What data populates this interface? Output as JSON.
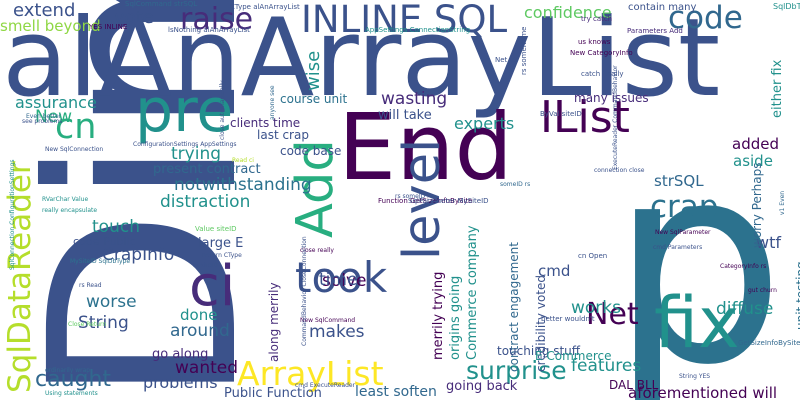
{
  "words": [
    {
      "text": "Dim",
      "color": "#3b528b"
    },
    {
      "text": "alAnArrayList",
      "color": "#3b528b"
    },
    {
      "text": "p",
      "color": "#2c728e"
    },
    {
      "text": "End",
      "color": "#440154"
    },
    {
      "text": "fix",
      "color": "#21918c"
    },
    {
      "text": "pre",
      "color": "#21918c"
    },
    {
      "text": "ci",
      "color": "#472c7a"
    },
    {
      "text": "SqlDataReader",
      "color": "#b5de2b"
    },
    {
      "text": "Add",
      "color": "#28ae80"
    },
    {
      "text": "level",
      "color": "#3b528b"
    },
    {
      "text": "IList",
      "color": "#440154"
    },
    {
      "text": "took",
      "color": "#3b528b"
    },
    {
      "text": "INLINE SQL",
      "color": "#3b528b"
    },
    {
      "text": "ArrayList",
      "color": "#fde725"
    },
    {
      "text": "code",
      "color": "#31688e"
    },
    {
      "text": "cn",
      "color": "#28ae80"
    },
    {
      "text": "crap",
      "color": "#2c728e"
    },
    {
      "text": "Net",
      "color": "#440154"
    },
    {
      "text": "raise",
      "color": "#472c7a"
    },
    {
      "text": "surprise",
      "color": "#21918c"
    },
    {
      "text": "caught",
      "color": "#31688e"
    },
    {
      "text": "CrapInfo",
      "color": "#3b528b"
    },
    {
      "text": "vote",
      "color": "#3b528b"
    },
    {
      "text": "extend",
      "color": "#3b528b"
    },
    {
      "text": "confidence",
      "color": "#5ec962"
    },
    {
      "text": "smell beyond",
      "color": "#8fd744"
    },
    {
      "text": "wise",
      "color": "#21918c"
    },
    {
      "text": "assurance",
      "color": "#21918c"
    },
    {
      "text": "wasting",
      "color": "#472c7a"
    },
    {
      "text": "experts",
      "color": "#21918c"
    },
    {
      "text": "New",
      "color": "#28ae80"
    },
    {
      "text": "added",
      "color": "#440154"
    },
    {
      "text": "aside",
      "color": "#21918c"
    },
    {
      "text": "strSQL",
      "color": "#31688e"
    },
    {
      "text": "trying",
      "color": "#21918c"
    },
    {
      "text": "distraction",
      "color": "#21918c"
    },
    {
      "text": "notwithstanding",
      "color": "#2c728e"
    },
    {
      "text": "cmd",
      "color": "#3b528b"
    },
    {
      "text": "wtf",
      "color": "#3b528b"
    },
    {
      "text": "touch",
      "color": "#21918c"
    },
    {
      "text": "solve",
      "color": "#440154"
    },
    {
      "text": "time",
      "color": "#3b528b"
    },
    {
      "text": "works",
      "color": "#21918c"
    },
    {
      "text": "diffuse",
      "color": "#21918c"
    },
    {
      "text": "worse",
      "color": "#2c728e"
    },
    {
      "text": "String",
      "color": "#3b528b"
    },
    {
      "text": "done",
      "color": "#21918c"
    },
    {
      "text": "around",
      "color": "#31688e"
    },
    {
      "text": "makes",
      "color": "#3b528b"
    },
    {
      "text": "wanted",
      "color": "#440154"
    },
    {
      "text": "problems",
      "color": "#3b528b"
    },
    {
      "text": "features",
      "color": "#21918c"
    },
    {
      "text": "going back",
      "color": "#472c7a"
    },
    {
      "text": "least soften",
      "color": "#31688e"
    },
    {
      "text": "Public Function",
      "color": "#3b528b"
    },
    {
      "text": "aforementioned will",
      "color": "#440154"
    },
    {
      "text": "many issues",
      "color": "#472c7a"
    },
    {
      "text": "will take",
      "color": "#3b528b"
    },
    {
      "text": "course unit",
      "color": "#2c728e"
    },
    {
      "text": "clients time",
      "color": "#472c7a"
    },
    {
      "text": "last crap",
      "color": "#3b528b"
    },
    {
      "text": "code base",
      "color": "#3b528b"
    },
    {
      "text": "present contract",
      "color": "#31688e"
    },
    {
      "text": "large E",
      "color": "#3b528b"
    },
    {
      "text": "code Public",
      "color": "#3b528b"
    },
    {
      "text": "go along",
      "color": "#472c7a"
    },
    {
      "text": "Commerce company",
      "color": "#21918c"
    },
    {
      "text": "origins going",
      "color": "#21918c"
    },
    {
      "text": "merrily trying",
      "color": "#440154"
    },
    {
      "text": "contract engagement",
      "color": "#31688e"
    },
    {
      "text": "credibility voted",
      "color": "#3b528b"
    },
    {
      "text": "touching stuff",
      "color": "#3b528b"
    },
    {
      "text": "E Commerce",
      "color": "#21918c"
    },
    {
      "text": "DAL BLL",
      "color": "#440154"
    },
    {
      "text": "along merrily",
      "color": "#472c7a"
    },
    {
      "text": "either fix",
      "color": "#21918c"
    },
    {
      "text": "unit testing",
      "color": "#2c728e"
    },
    {
      "text": "worry Perhaps",
      "color": "#31688e"
    },
    {
      "text": "contain many",
      "color": "#3b528b"
    },
    {
      "text": "SqlCommand strSQL",
      "color": "#31688e"
    },
    {
      "text": "CType alAnArrayList",
      "color": "#3b528b"
    },
    {
      "text": "YES INLINE",
      "color": "#440154"
    },
    {
      "text": "lsNothing alAnArrayList",
      "color": "#3b528b"
    },
    {
      "text": "AppSettings ConnectionString",
      "color": "#21918c"
    },
    {
      "text": "Parameters Add",
      "color": "#472c7a"
    },
    {
      "text": "New CategoryInfo",
      "color": "#440154"
    },
    {
      "text": "try catch",
      "color": "#472c7a"
    },
    {
      "text": "us knows",
      "color": "#440154"
    },
    {
      "text": "catch finally",
      "color": "#3b528b"
    },
    {
      "text": "Net v1",
      "color": "#3b528b"
    },
    {
      "text": "Even better",
      "color": "#31688e"
    },
    {
      "text": "see problems",
      "color": "#3b528b"
    },
    {
      "text": "New SqlConnection",
      "color": "#3b528b"
    },
    {
      "text": "ConfigurationSettings AppSettings",
      "color": "#3b528b"
    },
    {
      "text": "SqlConnection ConfigurationSettings",
      "color": "#21918c"
    },
    {
      "text": "RVarChar Value",
      "color": "#21918c"
    },
    {
      "text": "really encapsulate",
      "color": "#21918c"
    },
    {
      "text": "Function GetSizeInfoBySite",
      "color": "#440154"
    },
    {
      "text": "SqlParameter MySiteID",
      "color": "#3b528b"
    },
    {
      "text": "close really",
      "color": "#440154"
    },
    {
      "text": "New SqlCommand",
      "color": "#440154"
    },
    {
      "text": "Value siteID",
      "color": "#5ec962"
    },
    {
      "text": "Return CType",
      "color": "#3b528b"
    },
    {
      "text": "rs siteID",
      "color": "#3b528b"
    },
    {
      "text": "MySiteID SqlDbType",
      "color": "#2c728e"
    },
    {
      "text": "ordinarily wrap",
      "color": "#31688e"
    },
    {
      "text": "Using statements",
      "color": "#21918c"
    },
    {
      "text": "cmd ExecuteReader",
      "color": "#3b528b"
    },
    {
      "text": "CategoryInfo rs",
      "color": "#440154"
    },
    {
      "text": "GetSizeInfoBySite ByVal",
      "color": "#31688e"
    },
    {
      "text": "String YES",
      "color": "#3b528b"
    },
    {
      "text": "better wouldn't",
      "color": "#3b528b"
    },
    {
      "text": "cmd Parameters",
      "color": "#3b528b"
    },
    {
      "text": "New SqlParameter",
      "color": "#440154"
    },
    {
      "text": "ByVal siteID",
      "color": "#3b528b"
    },
    {
      "text": "Close Return",
      "color": "#5ec962"
    },
    {
      "text": "cn Open",
      "color": "#3b528b"
    },
    {
      "text": "SqlDbType RVarChar",
      "color": "#21918c"
    },
    {
      "text": "gut churn",
      "color": "#440154"
    },
    {
      "text": "v1 Even",
      "color": "#31688e"
    },
    {
      "text": "connection close",
      "color": "#3b528b"
    },
    {
      "text": "rs Read",
      "color": "#3b528b"
    },
    {
      "text": "Read ci",
      "color": "#b5de2b"
    },
    {
      "text": "rs someName",
      "color": "#3b528b"
    },
    {
      "text": "close automagically",
      "color": "#3b528b"
    },
    {
      "text": "anyone see",
      "color": "#31688e"
    },
    {
      "text": "someID rs",
      "color": "#31688e"
    },
    {
      "text": "CommandBehavior CloseConnection",
      "color": "#3b528b"
    },
    {
      "text": "ExecuteReader CommandBehavior",
      "color": "#3b528b"
    },
    {
      "text": "rs someID",
      "color": "#3b528b"
    }
  ]
}
